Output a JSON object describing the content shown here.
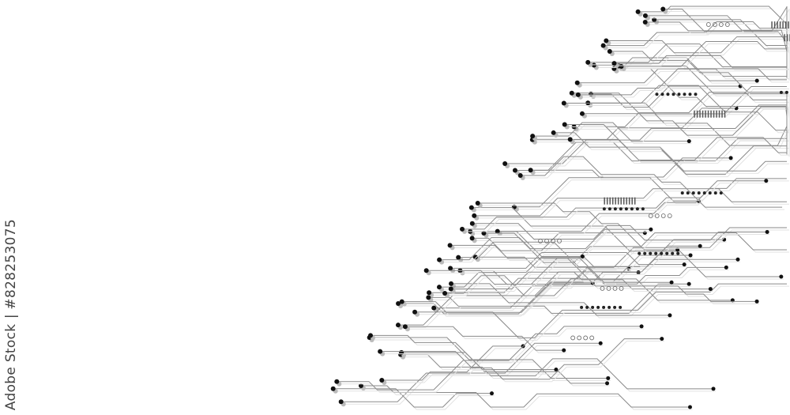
{
  "watermark": {
    "brand": "Adobe Stock",
    "separator": "|",
    "asset_id": "#828253075"
  },
  "colors": {
    "background": "#ffffff",
    "trace": "#8a8a8a",
    "pad": "#111111",
    "shadow": "#bbbbbb",
    "credit_text": "#444444"
  },
  "illustration": {
    "subject": "circuit-board-traces",
    "placement": "right"
  }
}
